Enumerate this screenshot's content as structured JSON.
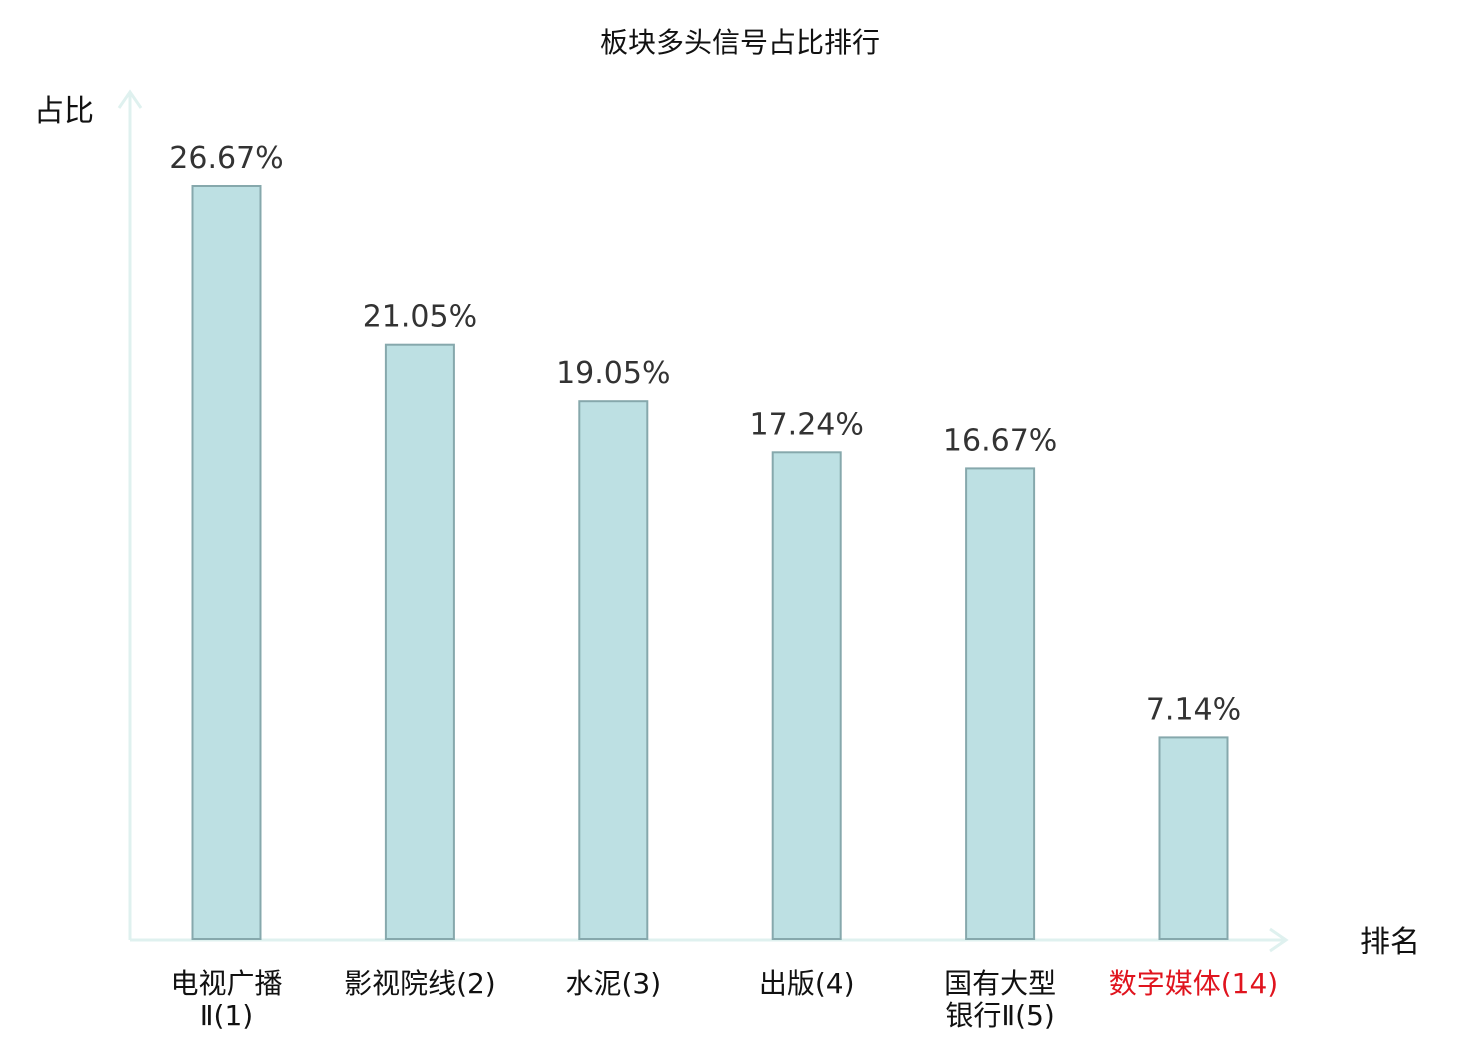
{
  "chart_data": {
    "type": "bar",
    "title": "板块多头信号占比排行",
    "ylabel": "占比",
    "xlabel": "排名",
    "ylim": [
      0,
      30
    ],
    "grid": false,
    "categories": [
      {
        "lines": [
          "电视广播",
          "Ⅱ(1)"
        ],
        "highlight": false
      },
      {
        "lines": [
          "影视院线(2)"
        ],
        "highlight": false
      },
      {
        "lines": [
          "水泥(3)"
        ],
        "highlight": false
      },
      {
        "lines": [
          "出版(4)"
        ],
        "highlight": false
      },
      {
        "lines": [
          "国有大型",
          "银行Ⅱ(5)"
        ],
        "highlight": false
      },
      {
        "lines": [
          "数字媒体(14)"
        ],
        "highlight": true
      }
    ],
    "values": [
      26.67,
      21.05,
      19.05,
      17.24,
      16.67,
      7.14
    ],
    "data_labels": [
      "26.67%",
      "21.05%",
      "19.05%",
      "17.24%",
      "16.67%",
      "7.14%"
    ]
  },
  "colors": {
    "bar_fill": "#bde0e3",
    "bar_stroke": "#86a8ac",
    "axis": "#dff1ef",
    "text": "#111111",
    "value_text": "#333333",
    "highlight": "#e0141e"
  }
}
